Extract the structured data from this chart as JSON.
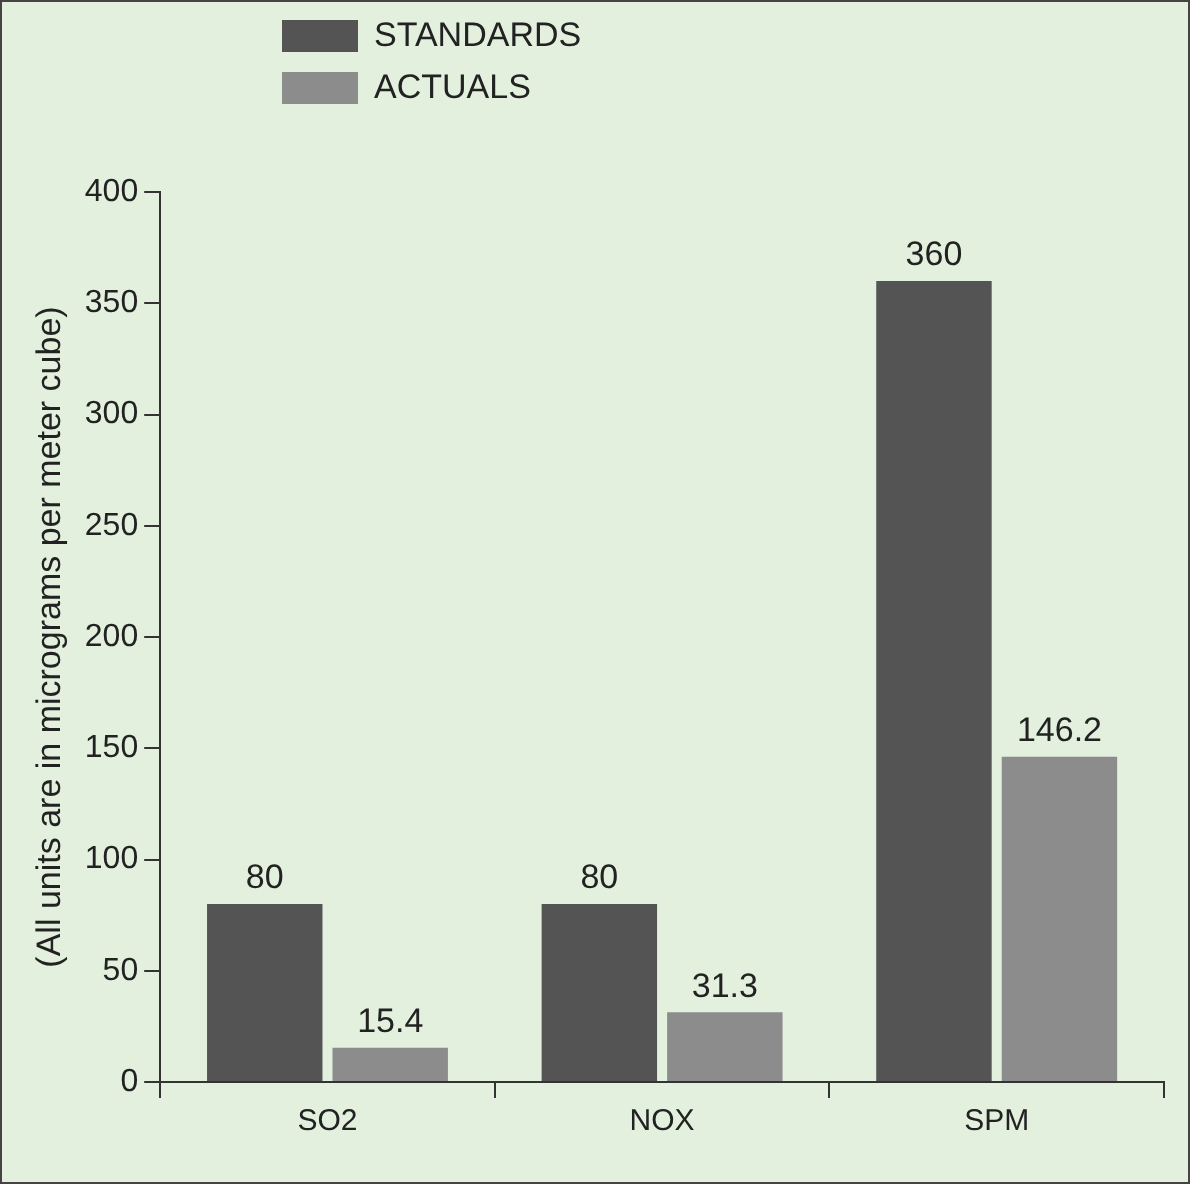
{
  "chart_data": {
    "type": "bar",
    "ylabel": "(All units are in micrograms per meter cube)",
    "categories": [
      "SO2",
      "NOX",
      "SPM"
    ],
    "series": [
      {
        "name": "STANDARDS",
        "color": "#545454",
        "values": [
          80,
          80,
          360
        ]
      },
      {
        "name": "ACTUALS",
        "color": "#8c8c8c",
        "values": [
          15.4,
          31.3,
          146.2
        ]
      }
    ],
    "ylim": [
      0,
      400
    ],
    "yticks": [
      0,
      50,
      100,
      150,
      200,
      250,
      300,
      350,
      400
    ],
    "grid": false,
    "legend": "top left",
    "data_labels": true
  }
}
